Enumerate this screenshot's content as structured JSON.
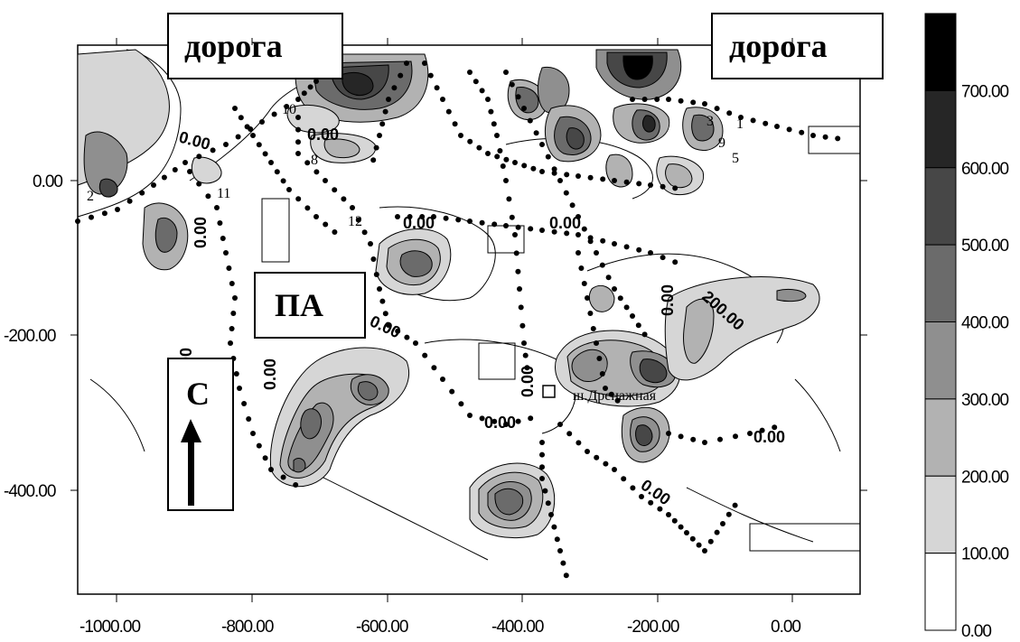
{
  "map": {
    "x_ticks": [
      "-1000.00",
      "-800.00",
      "-600.00",
      "-400.00",
      "-200.00",
      "0.00"
    ],
    "y_ticks": [
      "0.00",
      "-200.00",
      "-400.00"
    ],
    "labels": {
      "road_left": "дорога",
      "road_right": "дорога",
      "pa": "ПА",
      "north": "С",
      "shaft": "ш.Дренажная"
    },
    "contour_labels": [
      "0.00",
      "0.00",
      "0.00",
      "0.00",
      "0.00",
      "0.00",
      "0.00",
      "0.00",
      "0.00",
      "0.00",
      "0.00",
      "0.00",
      "0.00",
      "200.00"
    ],
    "point_numbers": [
      "1",
      "2",
      "3",
      "5",
      "8",
      "9",
      "10",
      "11",
      "12"
    ]
  },
  "legend": {
    "levels": [
      "700.00",
      "600.00",
      "500.00",
      "400.00",
      "300.00",
      "200.00",
      "100.00",
      "0.00"
    ],
    "colors": [
      "#000000",
      "#262626",
      "#474747",
      "#6b6b6b",
      "#8f8f8f",
      "#b2b2b2",
      "#d6d6d6",
      "#ffffff"
    ]
  }
}
